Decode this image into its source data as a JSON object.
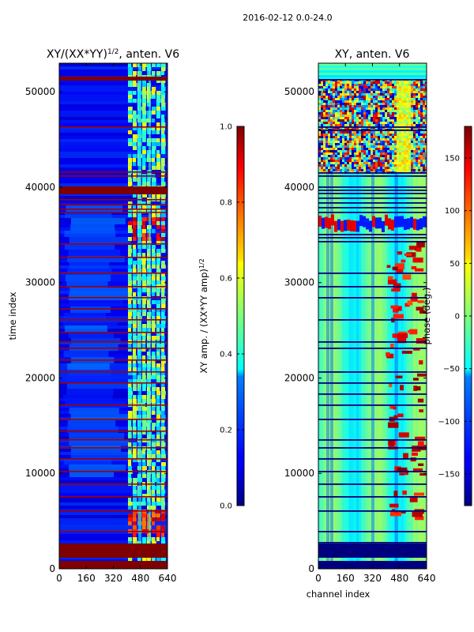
{
  "figure_title": "2016-02-12 0.0-24.0",
  "chart_data": [
    {
      "type": "heatmap",
      "title_prefix": "XY/(XX*YY)",
      "title_exp": "1/2",
      "title_suffix": ", anten. V6",
      "xlabel": "",
      "ylabel": "time index",
      "xlim": [
        0,
        640
      ],
      "ylim": [
        0,
        53000
      ],
      "xticks": [
        0,
        160,
        320,
        480,
        640
      ],
      "yticks": [
        0,
        10000,
        20000,
        30000,
        40000,
        50000
      ],
      "colormap": "jet",
      "colorbar": {
        "label_prefix": "XY amp. / (XX*YY amp)",
        "label_exp": "1/2",
        "range": [
          0.0,
          1.0
        ],
        "ticks": [
          "0.0",
          "0.2",
          "0.4",
          "0.6",
          "0.8",
          "1.0"
        ]
      }
    },
    {
      "type": "heatmap",
      "title": "XY, anten. V6",
      "xlabel": "channel index",
      "ylabel": "",
      "xlim": [
        0,
        640
      ],
      "ylim": [
        0,
        53000
      ],
      "xticks": [
        0,
        160,
        320,
        480,
        640
      ],
      "yticks": [
        0,
        10000,
        20000,
        30000,
        40000,
        50000
      ],
      "colormap": "jet",
      "colorbar": {
        "label": "phase (deg.)",
        "range": [
          -180,
          180
        ],
        "ticks": [
          "-150",
          "-100",
          "-50",
          "0",
          "50",
          "100",
          "150"
        ]
      }
    }
  ],
  "colors": {
    "jet_dark_blue": "#00007f",
    "jet_blue": "#0000ff",
    "jet_cyan": "#00ffff",
    "jet_yellow": "#ffff00",
    "jet_red": "#ff0000",
    "jet_dark_red": "#7f0000"
  }
}
